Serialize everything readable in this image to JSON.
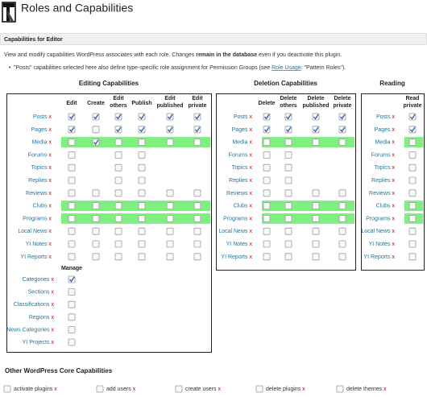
{
  "header": {
    "title": "Roles and Capabilities"
  },
  "panel": {
    "title": "Capabilities for Editor",
    "intro": [
      "View and modify capabilities WordPress associates with each role. Changes ",
      "remain in the database",
      " even if you deactivate this plugin."
    ],
    "note": [
      "\"Posts\" capabilities selected here also define type-specific role assignment for Permission Groups (see ",
      "Role Usage",
      ": \"Pattern Roles\")."
    ]
  },
  "remove_label": "x",
  "groups": [
    {
      "title": "Editing Capabilities",
      "columns": [
        [
          "Edit"
        ],
        [
          "Create"
        ],
        [
          "Edit",
          "others"
        ],
        [
          "Publish"
        ],
        [
          "Edit",
          "published"
        ],
        [
          "Edit",
          "private"
        ]
      ],
      "rows": [
        {
          "label": "Posts",
          "highlight": false,
          "cells": [
            true,
            true,
            true,
            true,
            true,
            true
          ]
        },
        {
          "label": "Pages",
          "highlight": false,
          "cells": [
            true,
            false,
            true,
            true,
            true,
            true
          ]
        },
        {
          "label": "Media",
          "highlight": true,
          "cells": [
            false,
            true,
            false,
            false,
            false,
            false
          ]
        },
        {
          "label": "Forums",
          "highlight": false,
          "cells": [
            false,
            null,
            false,
            false,
            null,
            null
          ]
        },
        {
          "label": "Topics",
          "highlight": false,
          "cells": [
            false,
            null,
            false,
            false,
            null,
            null
          ]
        },
        {
          "label": "Replies",
          "highlight": false,
          "cells": [
            false,
            null,
            false,
            false,
            null,
            null
          ]
        },
        {
          "label": "Reviews",
          "highlight": false,
          "cells": [
            false,
            false,
            false,
            false,
            false,
            false
          ]
        },
        {
          "label": "Clubs",
          "highlight": true,
          "cells": [
            false,
            false,
            false,
            false,
            false,
            false
          ]
        },
        {
          "label": "Programs",
          "highlight": true,
          "cells": [
            false,
            false,
            false,
            false,
            false,
            false
          ]
        },
        {
          "label": "Local News",
          "highlight": false,
          "cells": [
            false,
            false,
            false,
            false,
            false,
            false
          ]
        },
        {
          "label": "YI Notes",
          "highlight": false,
          "cells": [
            false,
            false,
            false,
            false,
            false,
            false
          ]
        },
        {
          "label": "YI Reports",
          "highlight": false,
          "cells": [
            false,
            false,
            false,
            false,
            false,
            false
          ]
        }
      ],
      "manage": {
        "title": "Manage",
        "rows": [
          {
            "label": "Categories",
            "cells": [
              true
            ]
          },
          {
            "label": "Sections",
            "cells": [
              false
            ]
          },
          {
            "label": "Classifications",
            "cells": [
              false
            ]
          },
          {
            "label": "Regions",
            "cells": [
              false
            ]
          },
          {
            "label": "News Categories",
            "cells": [
              false
            ]
          },
          {
            "label": "YI Projects",
            "cells": [
              false
            ]
          }
        ]
      }
    },
    {
      "title": "Deletion Capabilities",
      "columns": [
        [
          "Delete"
        ],
        [
          "Delete",
          "others"
        ],
        [
          "Delete",
          "published"
        ],
        [
          "Delete",
          "private"
        ]
      ],
      "rows": [
        {
          "label": "Posts",
          "highlight": false,
          "cells": [
            true,
            true,
            true,
            true
          ]
        },
        {
          "label": "Pages",
          "highlight": false,
          "cells": [
            true,
            true,
            true,
            true
          ]
        },
        {
          "label": "Media",
          "highlight": true,
          "cells": [
            false,
            false,
            false,
            false
          ]
        },
        {
          "label": "Forums",
          "highlight": false,
          "cells": [
            false,
            false,
            null,
            null
          ]
        },
        {
          "label": "Topics",
          "highlight": false,
          "cells": [
            false,
            false,
            null,
            null
          ]
        },
        {
          "label": "Replies",
          "highlight": false,
          "cells": [
            false,
            false,
            null,
            null
          ]
        },
        {
          "label": "Reviews",
          "highlight": false,
          "cells": [
            false,
            false,
            false,
            false
          ]
        },
        {
          "label": "Clubs",
          "highlight": true,
          "cells": [
            false,
            false,
            false,
            false
          ]
        },
        {
          "label": "Programs",
          "highlight": true,
          "cells": [
            false,
            false,
            false,
            false
          ]
        },
        {
          "label": "Local News",
          "highlight": false,
          "cells": [
            false,
            false,
            false,
            false
          ]
        },
        {
          "label": "YI Notes",
          "highlight": false,
          "cells": [
            false,
            false,
            false,
            false
          ]
        },
        {
          "label": "YI Reports",
          "highlight": false,
          "cells": [
            false,
            false,
            false,
            false
          ]
        }
      ]
    },
    {
      "title": "Reading",
      "columns": [
        [
          "Read",
          "private"
        ]
      ],
      "rows": [
        {
          "label": "Posts",
          "highlight": false,
          "cells": [
            true
          ]
        },
        {
          "label": "Pages",
          "highlight": false,
          "cells": [
            true
          ]
        },
        {
          "label": "Media",
          "highlight": true,
          "cells": [
            false
          ]
        },
        {
          "label": "Forums",
          "highlight": false,
          "cells": [
            false
          ]
        },
        {
          "label": "Topics",
          "highlight": false,
          "cells": [
            false
          ]
        },
        {
          "label": "Replies",
          "highlight": false,
          "cells": [
            false
          ]
        },
        {
          "label": "Reviews",
          "highlight": false,
          "cells": [
            false
          ]
        },
        {
          "label": "Clubs",
          "highlight": true,
          "cells": [
            false
          ]
        },
        {
          "label": "Programs",
          "highlight": true,
          "cells": [
            false
          ]
        },
        {
          "label": "Local News",
          "highlight": false,
          "cells": [
            false
          ]
        },
        {
          "label": "YI Notes",
          "highlight": false,
          "cells": [
            false
          ]
        },
        {
          "label": "YI Reports",
          "highlight": false,
          "cells": [
            false
          ]
        }
      ]
    }
  ],
  "core": {
    "title": "Other WordPress Core Capabilities",
    "items": [
      {
        "label": "activate plugins",
        "checked": false
      },
      {
        "label": "add users",
        "checked": false
      },
      {
        "label": "create users",
        "checked": false
      },
      {
        "label": "delete plugins",
        "checked": false
      },
      {
        "label": "delete themes",
        "checked": false
      }
    ]
  }
}
